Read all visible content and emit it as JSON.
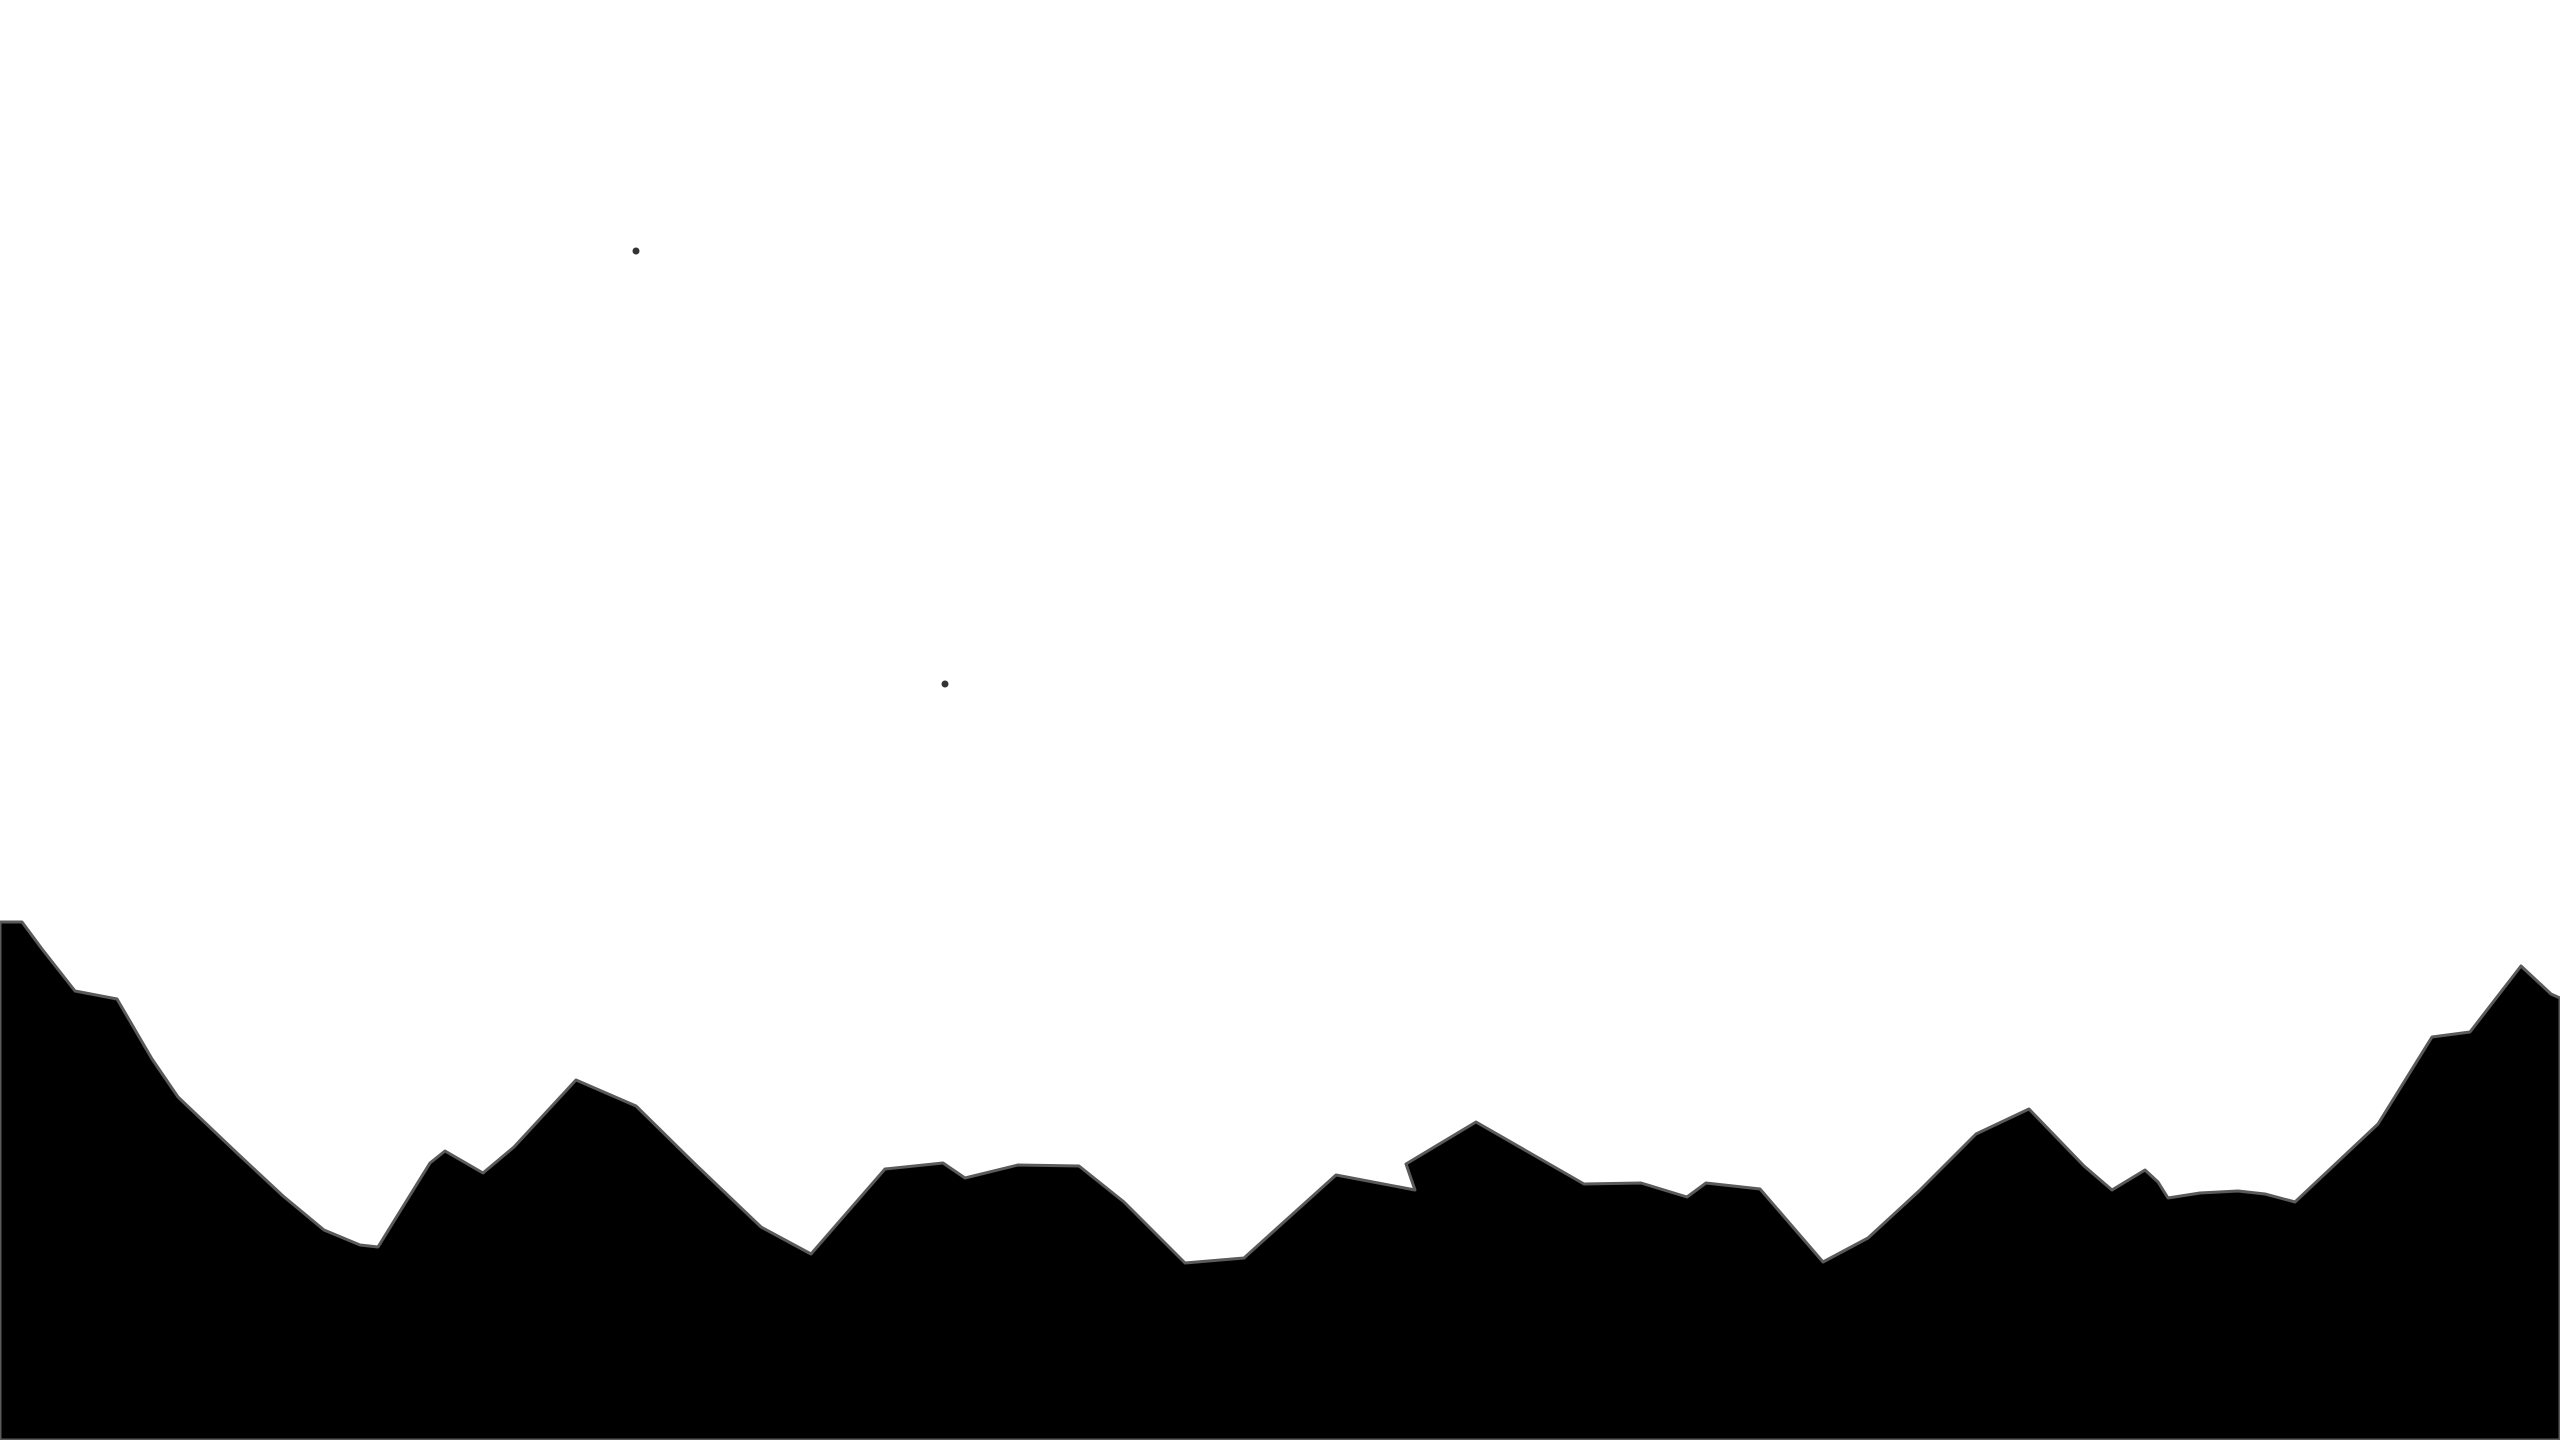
{
  "scene": {
    "background_color": "#ffffff",
    "terrain_color": "#000000",
    "terrain_outline_color": "#5a5a5a",
    "dot_color": "#333333",
    "dot_count": 2
  }
}
